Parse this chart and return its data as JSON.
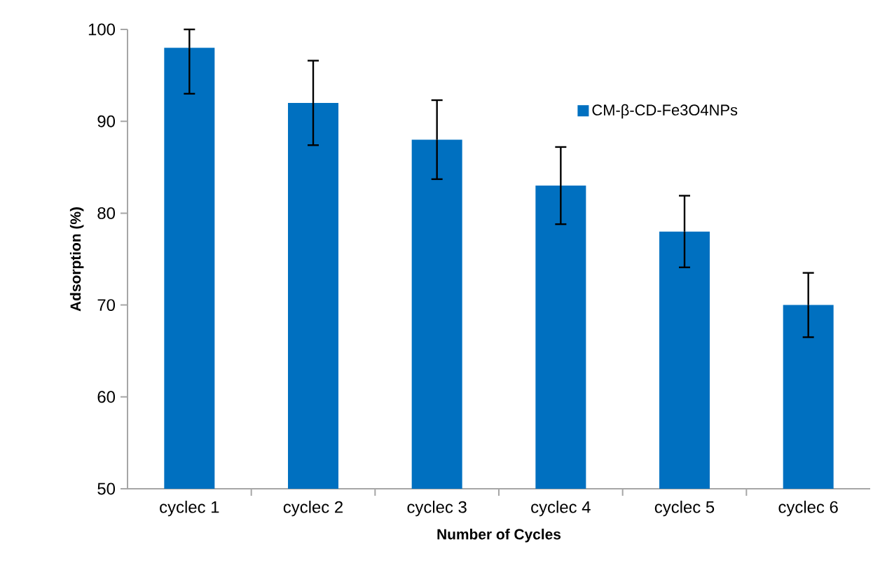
{
  "chart_data": {
    "type": "bar",
    "xlabel": "Number of Cycles",
    "ylabel": "Adsorption (%)",
    "categories": [
      "cyclec 1",
      "cyclec 2",
      "cyclec 3",
      "cyclec 4",
      "cyclec 5",
      "cyclec 6"
    ],
    "series": [
      {
        "name": "CM-β-CD-Fe3O4NPs",
        "color": "#0070c0",
        "values": [
          98,
          92,
          88,
          83,
          78,
          70
        ],
        "errors": [
          [
            93,
            100
          ],
          4.6,
          4.3,
          4.2,
          3.9,
          3.5
        ]
      }
    ],
    "ylim": [
      50,
      100
    ],
    "yticks": [
      50,
      60,
      70,
      80,
      90,
      100
    ],
    "grid": false,
    "legend": "top right"
  }
}
